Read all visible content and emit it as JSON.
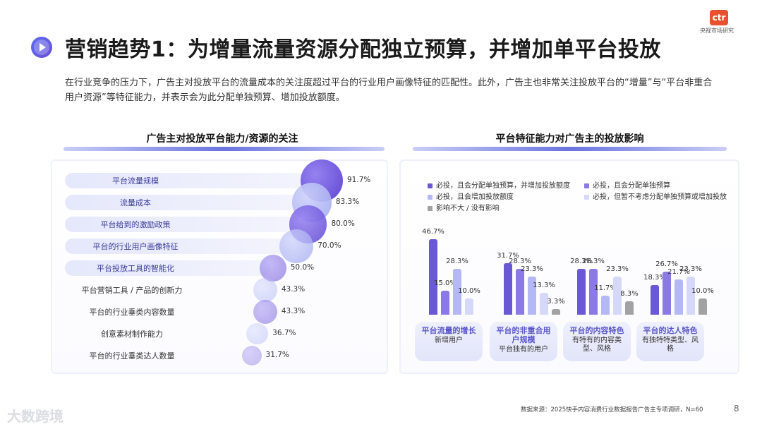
{
  "header": {
    "title": "营销趋势1：为增量流量资源分配独立预算，并增加单平台投放",
    "intro": "在行业竞争的压力下，广告主对投放平台的流量成本的关注度超过平台的行业用户画像特征的匹配性。此外，广告主也非常关注投放平台的“增量”与“平台非重合用户资源”等特征能力，并表示会为此分配单独预算、增加投放额度。",
    "logo_text": "ctr",
    "logo_sub": "央视市场研究"
  },
  "colors": {
    "accent": "#5b4fd0",
    "primary": "#6c5ce0",
    "light": "#a9aef3",
    "grey": "#9a9a9a"
  },
  "chart_data": [
    {
      "type": "bubble-bar",
      "title": "广告主对投放平台能力/资源的关注",
      "categories": [
        "平台流量规模",
        "流量成本",
        "平台给到的激励政策",
        "平台的行业用户画像特征",
        "平台投放工具的智能化",
        "平台营销工具 / 产品的创新力",
        "平台的行业垂类内容数量",
        "创意素材制作能力",
        "平台的行业垂类达人数量"
      ],
      "values": [
        91.7,
        83.3,
        80.0,
        70.0,
        50.0,
        43.3,
        43.3,
        36.7,
        31.7
      ],
      "labels": [
        "91.7%",
        "83.3%",
        "80.0%",
        "70.0%",
        "50.0%",
        "43.3%",
        "43.3%",
        "36.7%",
        "31.7%"
      ]
    },
    {
      "type": "bar",
      "title": "平台特征能力对广告主的投放影响",
      "legend": [
        "必投，且会分配单独预算，并增加投放额度",
        "必投，且会分配单独预算",
        "必投，且会增加投放额度",
        "必投，但暂不考虑分配单独预算或增加投放",
        "影响不大 / 没有影响"
      ],
      "categories": [
        {
          "main": "平台流量的增长",
          "sub": "新增用户"
        },
        {
          "main": "平台的非重合用户规模",
          "sub": "平台独有的用户"
        },
        {
          "main": "平台的内容特色",
          "sub": "有特有的内容类型、风格"
        },
        {
          "main": "平台的达人特色",
          "sub": "有独特特类型、风格"
        }
      ],
      "series": [
        {
          "name": "必投，且会分配单独预算，并增加投放额度",
          "values": [
            46.7,
            31.7,
            28.3,
            18.3
          ],
          "labels": [
            "46.7%",
            "31.7%",
            "28.3%",
            "18.3%"
          ]
        },
        {
          "name": "必投，且会分配单独预算",
          "values": [
            15.0,
            28.3,
            28.3,
            26.7
          ],
          "labels": [
            "15.0%",
            "28.3%",
            "28.3%",
            "26.7%"
          ]
        },
        {
          "name": "必投，且会增加投放额度",
          "values": [
            28.3,
            23.3,
            11.7,
            21.7
          ],
          "labels": [
            "28.3%",
            "23.3%",
            "11.7%",
            "21.7%"
          ]
        },
        {
          "name": "必投，但暂不考虑分配单独预算或增加投放",
          "values": [
            10.0,
            13.3,
            23.3,
            23.3
          ],
          "labels": [
            "10.0%",
            "13.3%",
            "23.3%",
            "23.3%"
          ]
        },
        {
          "name": "影响不大 / 没有影响",
          "values": [
            0,
            3.3,
            8.3,
            10.0
          ],
          "labels": [
            "",
            "3.3%",
            "8.3%",
            "10.0%"
          ]
        }
      ]
    }
  ],
  "footer": {
    "source": "数据来源：2025快手内容消费行业数据报告广告主专项调研，N=60",
    "page": "8",
    "brand": "大数跨境"
  }
}
